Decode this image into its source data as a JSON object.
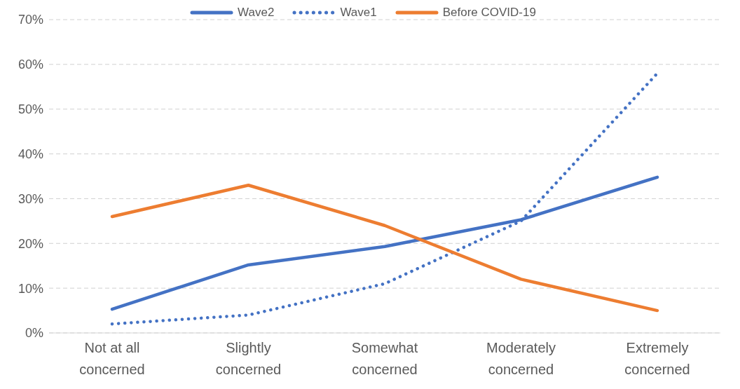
{
  "chart_data": {
    "type": "line",
    "categories": [
      "Not at all concerned",
      "Slightly concerned",
      "Somewhat concerned",
      "Moderately concerned",
      "Extremely concerned"
    ],
    "series": [
      {
        "name": "Wave2",
        "color": "#4472c4",
        "line_style": "solid",
        "values": [
          5.3,
          15.2,
          19.3,
          25.3,
          34.8
        ]
      },
      {
        "name": "Wave1",
        "color": "#4472c4",
        "line_style": "dotted",
        "values": [
          2,
          4,
          11,
          25,
          58
        ]
      },
      {
        "name": "Before COVID-19",
        "color": "#ed7d31",
        "line_style": "solid",
        "values": [
          26,
          33,
          24,
          12,
          5
        ]
      }
    ],
    "ylim": [
      0,
      70
    ],
    "yticks": [
      {
        "value": 0,
        "label": "0%"
      },
      {
        "value": 10,
        "label": "10%"
      },
      {
        "value": 20,
        "label": "20%"
      },
      {
        "value": 30,
        "label": "30%"
      },
      {
        "value": 40,
        "label": "40%"
      },
      {
        "value": 50,
        "label": "50%"
      },
      {
        "value": 60,
        "label": "60%"
      },
      {
        "value": 70,
        "label": "70%"
      }
    ],
    "grid": "y",
    "legend": "top",
    "marker": "none"
  }
}
